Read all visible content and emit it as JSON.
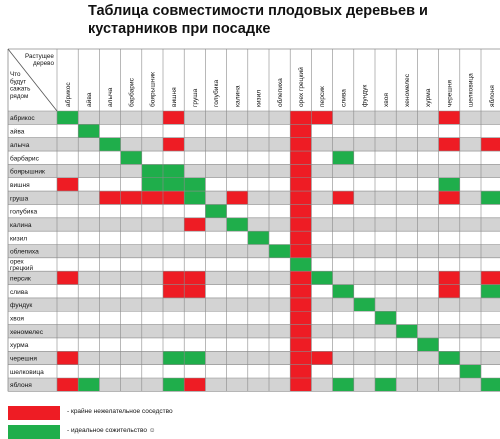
{
  "title": {
    "line1": "Таблица совместимости плодовых деревьев и",
    "line2": "кустарников при посадке"
  },
  "corner": {
    "top_label": "Растущее дерево",
    "left_label": "Что будут сажать рядом"
  },
  "colors": {
    "incompatible": "#ee1c24",
    "ideal": "#1fae4b",
    "diagonal": "#1fae4b",
    "band": "#d3d3d3",
    "blank": "#ffffff",
    "grid": "#8a8a8a"
  },
  "legend": {
    "red_label": "- крайне нежелательное соседство",
    "green_label": "- идеальное сожительство ☺"
  },
  "chart_data": {
    "type": "table",
    "columns": [
      "абрикос",
      "айва",
      "алыча",
      "барбарис",
      "боярышник",
      "вишня",
      "груша",
      "голубика",
      "калина",
      "кизил",
      "облепиха",
      "орех грецкий",
      "персик",
      "слива",
      "фундук",
      "хвоя",
      "хеномелес",
      "хурма",
      "черешня",
      "шелковица",
      "яблоня"
    ],
    "rows": [
      "абрикос",
      "айва",
      "алыча",
      "барбарис",
      "боярышник",
      "вишня",
      "груша",
      "голубика",
      "калина",
      "кизил",
      "облепиха",
      "орех грецкий",
      "персик",
      "слива",
      "фундук",
      "хвоя",
      "хеномелес",
      "хурма",
      "черешня",
      "шелковица",
      "яблоня"
    ],
    "cells": [
      [
        "G",
        "",
        "",
        "",
        "",
        "R",
        "",
        "",
        "",
        "",
        "",
        "R",
        "R",
        "",
        "",
        "",
        "",
        "",
        "R",
        "",
        ""
      ],
      [
        "",
        "G",
        "",
        "",
        "",
        "",
        "",
        "",
        "",
        "",
        "",
        "R",
        "",
        "",
        "",
        "",
        "",
        "",
        "",
        "",
        ""
      ],
      [
        "",
        "",
        "G",
        "",
        "",
        "R",
        "",
        "",
        "",
        "",
        "",
        "R",
        "",
        "",
        "",
        "",
        "",
        "",
        "R",
        "",
        "R"
      ],
      [
        "",
        "",
        "",
        "G",
        "",
        "",
        "",
        "",
        "",
        "",
        "",
        "R",
        "",
        "G",
        "",
        "",
        "",
        "",
        "",
        "",
        ""
      ],
      [
        "",
        "",
        "",
        "",
        "G",
        "G",
        "",
        "",
        "",
        "",
        "",
        "R",
        "",
        "",
        "",
        "",
        "",
        "",
        "",
        "",
        ""
      ],
      [
        "R",
        "",
        "",
        "",
        "G",
        "G",
        "G",
        "",
        "",
        "",
        "",
        "R",
        "",
        "",
        "",
        "",
        "",
        "",
        "G",
        "",
        ""
      ],
      [
        "",
        "",
        "R",
        "R",
        "R",
        "R",
        "G",
        "",
        "R",
        "",
        "",
        "R",
        "",
        "R",
        "",
        "",
        "",
        "",
        "R",
        "",
        "G"
      ],
      [
        "",
        "",
        "",
        "",
        "",
        "",
        "",
        "G",
        "",
        "",
        "",
        "R",
        "",
        "",
        "",
        "",
        "",
        "",
        "",
        "",
        ""
      ],
      [
        "",
        "",
        "",
        "",
        "",
        "",
        "R",
        "",
        "G",
        "",
        "",
        "R",
        "",
        "",
        "",
        "",
        "",
        "",
        "",
        "",
        ""
      ],
      [
        "",
        "",
        "",
        "",
        "",
        "",
        "",
        "",
        "",
        "G",
        "",
        "R",
        "",
        "",
        "",
        "",
        "",
        "",
        "",
        "",
        ""
      ],
      [
        "",
        "",
        "",
        "",
        "",
        "",
        "",
        "",
        "",
        "",
        "G",
        "R",
        "",
        "",
        "",
        "",
        "",
        "",
        "",
        "",
        ""
      ],
      [
        "",
        "",
        "",
        "",
        "",
        "",
        "",
        "",
        "",
        "",
        "",
        "G",
        "",
        "",
        "",
        "",
        "",
        "",
        "",
        "",
        ""
      ],
      [
        "R",
        "",
        "",
        "",
        "",
        "R",
        "R",
        "",
        "",
        "",
        "",
        "R",
        "G",
        "",
        "",
        "",
        "",
        "",
        "R",
        "",
        "R"
      ],
      [
        "",
        "",
        "",
        "",
        "",
        "R",
        "R",
        "",
        "",
        "",
        "",
        "R",
        "",
        "G",
        "",
        "",
        "",
        "",
        "R",
        "",
        "G"
      ],
      [
        "",
        "",
        "",
        "",
        "",
        "",
        "",
        "",
        "",
        "",
        "",
        "R",
        "",
        "",
        "G",
        "",
        "",
        "",
        "",
        "",
        ""
      ],
      [
        "",
        "",
        "",
        "",
        "",
        "",
        "",
        "",
        "",
        "",
        "",
        "R",
        "",
        "",
        "",
        "G",
        "",
        "",
        "",
        "",
        ""
      ],
      [
        "",
        "",
        "",
        "",
        "",
        "",
        "",
        "",
        "",
        "",
        "",
        "R",
        "",
        "",
        "",
        "",
        "G",
        "",
        "",
        "",
        ""
      ],
      [
        "",
        "",
        "",
        "",
        "",
        "",
        "",
        "",
        "",
        "",
        "",
        "R",
        "",
        "",
        "",
        "",
        "",
        "G",
        "",
        "",
        ""
      ],
      [
        "R",
        "",
        "",
        "",
        "",
        "G",
        "G",
        "",
        "",
        "",
        "",
        "R",
        "R",
        "",
        "",
        "",
        "",
        "",
        "G",
        "",
        ""
      ],
      [
        "",
        "",
        "",
        "",
        "",
        "",
        "",
        "",
        "",
        "",
        "",
        "R",
        "",
        "",
        "",
        "",
        "",
        "",
        "",
        "G",
        ""
      ],
      [
        "R",
        "G",
        "",
        "",
        "",
        "G",
        "R",
        "",
        "",
        "",
        "",
        "R",
        "",
        "G",
        "",
        "G",
        "",
        "",
        "",
        "",
        "G"
      ]
    ]
  }
}
